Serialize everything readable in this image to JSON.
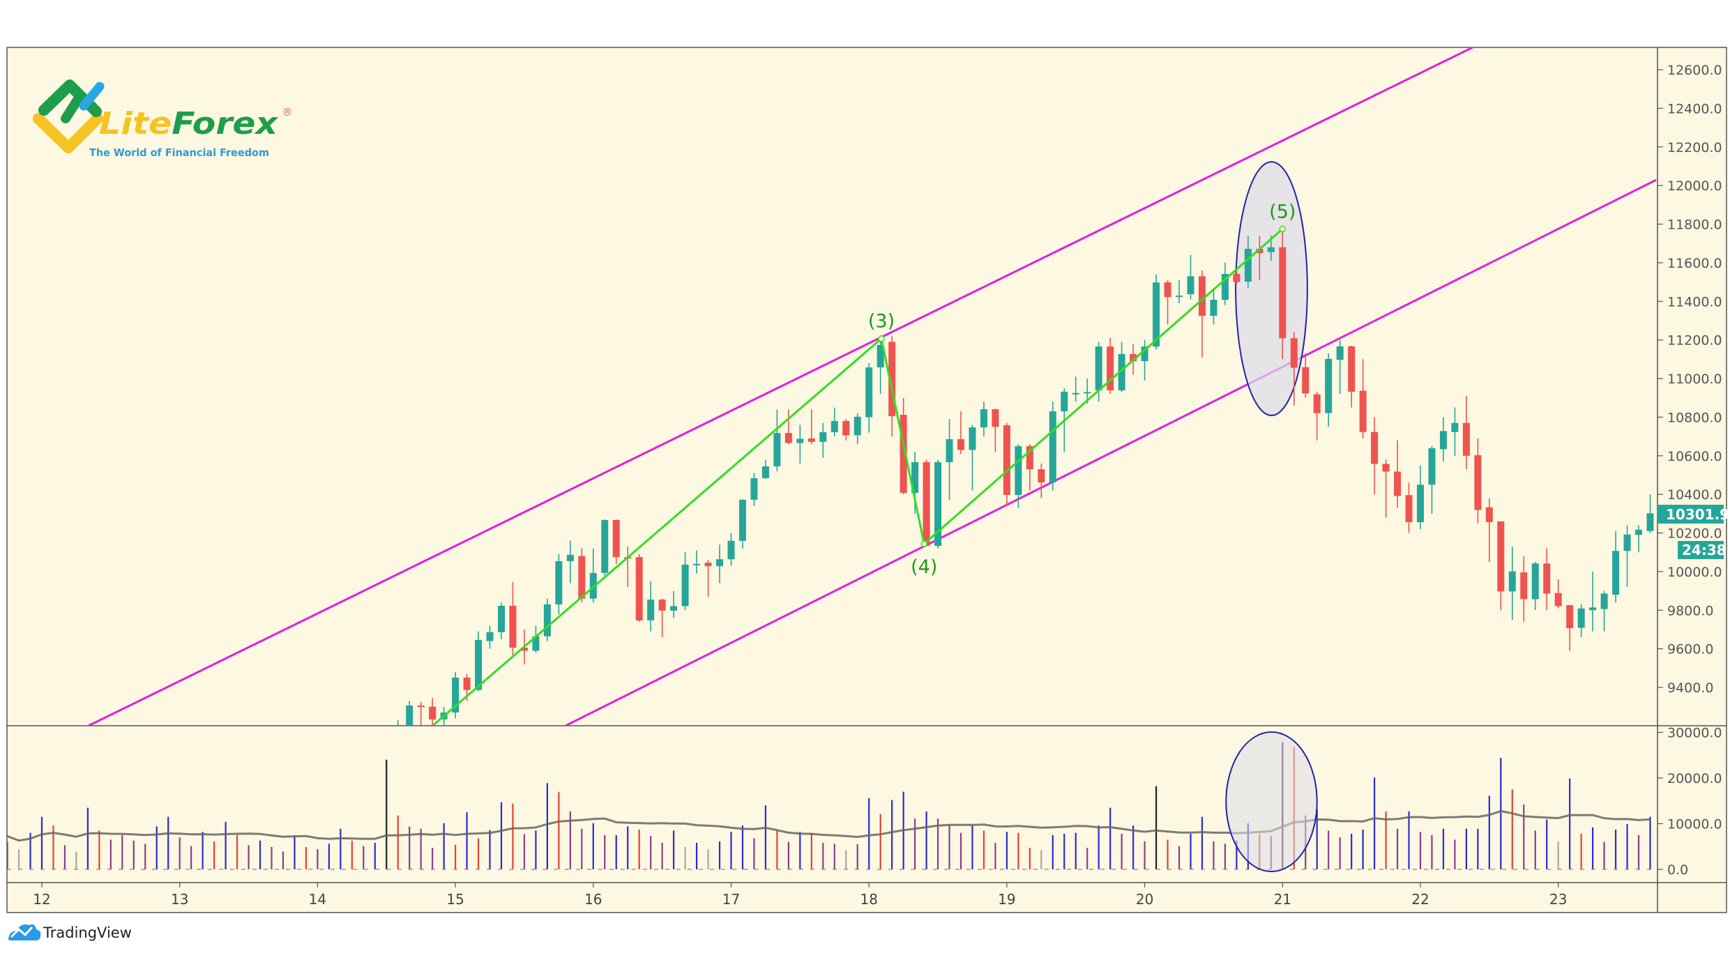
{
  "branding": {
    "logo_text_lite": "Lite",
    "logo_text_forex": "Forex",
    "logo_registered": "®",
    "logo_tagline": "The World of Financial Freedom",
    "footer_brand": "TradingView"
  },
  "colors": {
    "background": "#fdf8e2",
    "up": "#26a69a",
    "down": "#ef5350",
    "channel": "#e020e0",
    "wave": "#33dd22",
    "wave_label": "#1a9a1a",
    "ellipse_stroke": "#2222aa",
    "ellipse_fill": "#dcdce8",
    "volume": {
      "b": "#2b2bd0",
      "r": "#e8402e",
      "p": "#8c3c8c",
      "g": "#a8a8a0",
      "k": "#222222"
    },
    "volume_ma": "#666660",
    "last_price_badge": "#26a69a"
  },
  "chart_data": {
    "type": "candlestick",
    "price_axis": {
      "ylim": [
        9200,
        12800
      ],
      "ticks": [
        "12600.0",
        "12400.0",
        "12200.0",
        "12000.0",
        "11800.0",
        "11600.0",
        "11400.0",
        "11200.0",
        "11000.0",
        "10800.0",
        "10600.0",
        "10400.0",
        "10200.0",
        "10000.0",
        "9800.0",
        "9600.0",
        "9400.0"
      ]
    },
    "volume_axis": {
      "ylim": [
        0,
        30000
      ],
      "ticks": [
        "30000.0",
        "20000.0",
        "10000.0",
        "0.0"
      ]
    },
    "time_axis": {
      "ticks": [
        "12",
        "13",
        "14",
        "15",
        "16",
        "17",
        "18",
        "19",
        "20",
        "21",
        "22",
        "23"
      ]
    },
    "last_price": "10301.9",
    "countdown": "24:38",
    "candles_ohlc": [
      [
        9050,
        9230,
        9000,
        9150
      ],
      [
        9100,
        9330,
        9050,
        9306
      ],
      [
        9306,
        9325,
        9200,
        9300
      ],
      [
        9300,
        9345,
        9180,
        9234
      ],
      [
        9234,
        9300,
        9170,
        9270
      ],
      [
        9270,
        9480,
        9240,
        9451
      ],
      [
        9451,
        9470,
        9330,
        9387
      ],
      [
        9387,
        9690,
        9380,
        9646
      ],
      [
        9640,
        9720,
        9600,
        9686
      ],
      [
        9686,
        9840,
        9650,
        9823
      ],
      [
        9823,
        9945,
        9560,
        9606
      ],
      [
        9606,
        9700,
        9520,
        9590
      ],
      [
        9590,
        9720,
        9580,
        9665
      ],
      [
        9665,
        9860,
        9640,
        9830
      ],
      [
        9830,
        10090,
        9780,
        10054
      ],
      [
        10054,
        10160,
        9940,
        10087
      ],
      [
        10080,
        10120,
        9840,
        9860
      ],
      [
        9860,
        10120,
        9840,
        9993
      ],
      [
        9993,
        10270,
        9980,
        10267
      ],
      [
        10267,
        10270,
        10040,
        10075
      ],
      [
        10075,
        10130,
        9920,
        10070
      ],
      [
        10075,
        10090,
        9740,
        9747
      ],
      [
        9747,
        9950,
        9690,
        9855
      ],
      [
        9855,
        9860,
        9660,
        9798
      ],
      [
        9798,
        9900,
        9760,
        9821
      ],
      [
        9821,
        10100,
        9800,
        10036
      ],
      [
        10036,
        10110,
        9990,
        10040
      ],
      [
        10046,
        10060,
        9870,
        10028
      ],
      [
        10028,
        10140,
        9940,
        10064
      ],
      [
        10064,
        10200,
        10030,
        10159
      ],
      [
        10159,
        10375,
        10120,
        10372
      ],
      [
        10372,
        10510,
        10340,
        10484
      ],
      [
        10484,
        10580,
        10480,
        10545
      ],
      [
        10545,
        10840,
        10520,
        10718
      ],
      [
        10718,
        10840,
        10660,
        10666
      ],
      [
        10666,
        10760,
        10560,
        10688
      ],
      [
        10690,
        10840,
        10660,
        10672
      ],
      [
        10672,
        10770,
        10590,
        10722
      ],
      [
        10722,
        10850,
        10700,
        10780
      ],
      [
        10780,
        10790,
        10680,
        10706
      ],
      [
        10706,
        10820,
        10660,
        10802
      ],
      [
        10800,
        11080,
        10720,
        11058
      ],
      [
        11058,
        11207,
        10920,
        11174
      ],
      [
        11190,
        11220,
        10700,
        10805
      ],
      [
        10812,
        10900,
        10400,
        10408
      ],
      [
        10408,
        10620,
        10300,
        10567
      ],
      [
        10567,
        10580,
        10130,
        10133
      ],
      [
        10133,
        10580,
        10120,
        10567
      ],
      [
        10567,
        10790,
        10370,
        10686
      ],
      [
        10686,
        10830,
        10610,
        10630
      ],
      [
        10630,
        10760,
        10420,
        10747
      ],
      [
        10747,
        10880,
        10700,
        10841
      ],
      [
        10841,
        10845,
        10620,
        10750
      ],
      [
        10758,
        10770,
        10340,
        10397
      ],
      [
        10397,
        10660,
        10330,
        10650
      ],
      [
        10650,
        10660,
        10420,
        10530
      ],
      [
        10530,
        10560,
        10380,
        10462
      ],
      [
        10462,
        10880,
        10420,
        10830
      ],
      [
        10830,
        10950,
        10620,
        10932
      ],
      [
        10925,
        11010,
        10880,
        10925
      ],
      [
        10925,
        11000,
        10870,
        10930
      ],
      [
        10939,
        11190,
        10880,
        11166
      ],
      [
        11166,
        11210,
        10920,
        10939
      ],
      [
        10939,
        11190,
        10930,
        11127
      ],
      [
        11127,
        11180,
        11020,
        11090
      ],
      [
        11090,
        11200,
        10990,
        11166
      ],
      [
        11166,
        11540,
        11150,
        11498
      ],
      [
        11498,
        11510,
        11280,
        11422
      ],
      [
        11430,
        11510,
        11390,
        11430
      ],
      [
        11437,
        11640,
        11410,
        11530
      ],
      [
        11530,
        11560,
        11110,
        11325
      ],
      [
        11325,
        11460,
        11280,
        11408
      ],
      [
        11408,
        11600,
        11380,
        11542
      ],
      [
        11542,
        11560,
        11490,
        11500
      ],
      [
        11502,
        11740,
        11470,
        11672
      ],
      [
        11672,
        11740,
        11510,
        11650
      ],
      [
        11655,
        11740,
        11610,
        11680
      ],
      [
        11680,
        11790,
        11100,
        11209
      ],
      [
        11209,
        11240,
        10860,
        11056
      ],
      [
        11059,
        11130,
        10900,
        10923
      ],
      [
        10918,
        10930,
        10680,
        10821
      ],
      [
        10821,
        11130,
        10750,
        11102
      ],
      [
        11097,
        11200,
        10920,
        11167
      ],
      [
        11167,
        11170,
        10850,
        10932
      ],
      [
        10937,
        11100,
        10690,
        10723
      ],
      [
        10723,
        10800,
        10400,
        10558
      ],
      [
        10558,
        10580,
        10280,
        10518
      ],
      [
        10518,
        10680,
        10330,
        10392
      ],
      [
        10396,
        10460,
        10200,
        10256
      ],
      [
        10256,
        10550,
        10220,
        10450
      ],
      [
        10450,
        10650,
        10300,
        10639
      ],
      [
        10634,
        10800,
        10570,
        10728
      ],
      [
        10723,
        10850,
        10600,
        10770
      ],
      [
        10770,
        10910,
        10530,
        10600
      ],
      [
        10603,
        10690,
        10250,
        10319
      ],
      [
        10333,
        10380,
        10050,
        10256
      ],
      [
        10260,
        10260,
        9800,
        9897
      ],
      [
        9897,
        10130,
        9750,
        10001
      ],
      [
        9996,
        10080,
        9740,
        9857
      ],
      [
        9857,
        10050,
        9800,
        10042
      ],
      [
        10042,
        10120,
        9800,
        9886
      ],
      [
        9889,
        9960,
        9810,
        9821
      ],
      [
        9826,
        9826,
        9590,
        9707
      ],
      [
        9709,
        9830,
        9660,
        9809
      ],
      [
        9800,
        10000,
        9690,
        9814
      ],
      [
        9806,
        9900,
        9690,
        9886
      ],
      [
        9880,
        10210,
        9840,
        10107
      ],
      [
        10107,
        10240,
        9920,
        10192
      ],
      [
        10190,
        10240,
        10100,
        10217
      ],
      [
        10210,
        10400,
        10200,
        10302
      ]
    ],
    "volume": [
      [
        8500,
        "b"
      ],
      [
        6000,
        "p"
      ],
      [
        4400,
        "g"
      ],
      [
        8000,
        "b"
      ],
      [
        11500,
        "b"
      ],
      [
        9600,
        "r"
      ],
      [
        5300,
        "p"
      ],
      [
        3900,
        "g"
      ],
      [
        13500,
        "b"
      ],
      [
        8500,
        "r"
      ],
      [
        6500,
        "p"
      ],
      [
        7500,
        "p"
      ],
      [
        6300,
        "p"
      ],
      [
        5600,
        "p"
      ],
      [
        9400,
        "b"
      ],
      [
        11500,
        "b"
      ],
      [
        7000,
        "p"
      ],
      [
        5100,
        "p"
      ],
      [
        8200,
        "b"
      ],
      [
        6100,
        "r"
      ],
      [
        10400,
        "b"
      ],
      [
        7500,
        "r"
      ],
      [
        5300,
        "p"
      ],
      [
        6300,
        "b"
      ],
      [
        4900,
        "p"
      ],
      [
        3900,
        "p"
      ],
      [
        7400,
        "b"
      ],
      [
        4900,
        "r"
      ],
      [
        4400,
        "p"
      ],
      [
        5600,
        "b"
      ],
      [
        8900,
        "b"
      ],
      [
        6300,
        "r"
      ],
      [
        5100,
        "p"
      ],
      [
        5800,
        "b"
      ],
      [
        24000,
        "k"
      ],
      [
        11800,
        "r"
      ],
      [
        9400,
        "p"
      ],
      [
        8900,
        "p"
      ],
      [
        4700,
        "p"
      ],
      [
        10100,
        "b"
      ],
      [
        5400,
        "r"
      ],
      [
        12500,
        "b"
      ],
      [
        6800,
        "r"
      ],
      [
        8600,
        "b"
      ],
      [
        14700,
        "b"
      ],
      [
        14400,
        "r"
      ],
      [
        7700,
        "p"
      ],
      [
        8500,
        "b"
      ],
      [
        18900,
        "b"
      ],
      [
        16900,
        "r"
      ],
      [
        12700,
        "p"
      ],
      [
        8900,
        "p"
      ],
      [
        10100,
        "b"
      ],
      [
        7500,
        "p"
      ],
      [
        7500,
        "b"
      ],
      [
        9400,
        "b"
      ],
      [
        8700,
        "r"
      ],
      [
        7300,
        "p"
      ],
      [
        5800,
        "p"
      ],
      [
        8500,
        "b"
      ],
      [
        4900,
        "g"
      ],
      [
        5800,
        "b"
      ],
      [
        4400,
        "g"
      ],
      [
        6100,
        "b"
      ],
      [
        8200,
        "b"
      ],
      [
        9600,
        "b"
      ],
      [
        6800,
        "p"
      ],
      [
        14000,
        "b"
      ],
      [
        8500,
        "r"
      ],
      [
        6000,
        "p"
      ],
      [
        8200,
        "b"
      ],
      [
        8000,
        "r"
      ],
      [
        5800,
        "p"
      ],
      [
        5600,
        "p"
      ],
      [
        4200,
        "g"
      ],
      [
        5500,
        "p"
      ],
      [
        15600,
        "b"
      ],
      [
        12100,
        "r"
      ],
      [
        15200,
        "b"
      ],
      [
        17000,
        "b"
      ],
      [
        11100,
        "p"
      ],
      [
        12700,
        "b"
      ],
      [
        11100,
        "p"
      ],
      [
        9600,
        "p"
      ],
      [
        8000,
        "p"
      ],
      [
        9600,
        "b"
      ],
      [
        8500,
        "r"
      ],
      [
        5800,
        "p"
      ],
      [
        8200,
        "b"
      ],
      [
        8000,
        "r"
      ],
      [
        4700,
        "r"
      ],
      [
        4200,
        "g"
      ],
      [
        7500,
        "b"
      ],
      [
        7800,
        "b"
      ],
      [
        8000,
        "b"
      ],
      [
        4700,
        "p"
      ],
      [
        9600,
        "b"
      ],
      [
        13500,
        "b"
      ],
      [
        7800,
        "p"
      ],
      [
        9600,
        "b"
      ],
      [
        6100,
        "p"
      ],
      [
        18200,
        "k"
      ],
      [
        6500,
        "r"
      ],
      [
        5100,
        "p"
      ],
      [
        7800,
        "b"
      ],
      [
        11500,
        "b"
      ],
      [
        6100,
        "p"
      ],
      [
        5600,
        "p"
      ],
      [
        6300,
        "b"
      ],
      [
        10100,
        "b"
      ],
      [
        7800,
        "r"
      ],
      [
        7300,
        "p"
      ],
      [
        27800,
        "k"
      ],
      [
        26800,
        "r"
      ],
      [
        11800,
        "p"
      ],
      [
        13200,
        "b"
      ],
      [
        8500,
        "p"
      ],
      [
        7000,
        "p"
      ],
      [
        7800,
        "b"
      ],
      [
        8700,
        "b"
      ],
      [
        20100,
        "b"
      ],
      [
        12700,
        "r"
      ],
      [
        8900,
        "p"
      ],
      [
        12700,
        "b"
      ],
      [
        8200,
        "p"
      ],
      [
        7500,
        "p"
      ],
      [
        8900,
        "b"
      ],
      [
        6500,
        "p"
      ],
      [
        8900,
        "b"
      ],
      [
        8900,
        "b"
      ],
      [
        16100,
        "b"
      ],
      [
        24400,
        "b"
      ],
      [
        17500,
        "r"
      ],
      [
        14200,
        "p"
      ],
      [
        8500,
        "p"
      ],
      [
        10900,
        "b"
      ],
      [
        6100,
        "g"
      ],
      [
        19900,
        "b"
      ],
      [
        7800,
        "r"
      ],
      [
        9200,
        "b"
      ],
      [
        6000,
        "p"
      ],
      [
        8700,
        "b"
      ],
      [
        9900,
        "b"
      ],
      [
        7500,
        "p"
      ],
      [
        11500,
        "b"
      ]
    ],
    "channel_lines": [
      {
        "from": [
          12.34,
          9202
        ],
        "to": [
          22.38,
          12716
        ]
      },
      {
        "from": [
          15.8,
          9202
        ],
        "to": [
          23.71,
          12029
        ]
      }
    ],
    "wave_points": [
      {
        "day": 14.84,
        "price": 9205,
        "label": ""
      },
      {
        "day": 18.09,
        "price": 11207,
        "label": "(3)"
      },
      {
        "day": 18.4,
        "price": 10144,
        "label": "(4)"
      },
      {
        "day": 21.0,
        "price": 11775,
        "label": "(5)"
      }
    ],
    "highlight_ellipses": {
      "price": {
        "day": 20.92,
        "price": 11466,
        "half_days": 0.26,
        "half_price": 657
      },
      "volume": {
        "day": 20.92,
        "volume": 14800,
        "half_days": 0.33,
        "half_volume": 15270
      }
    }
  }
}
